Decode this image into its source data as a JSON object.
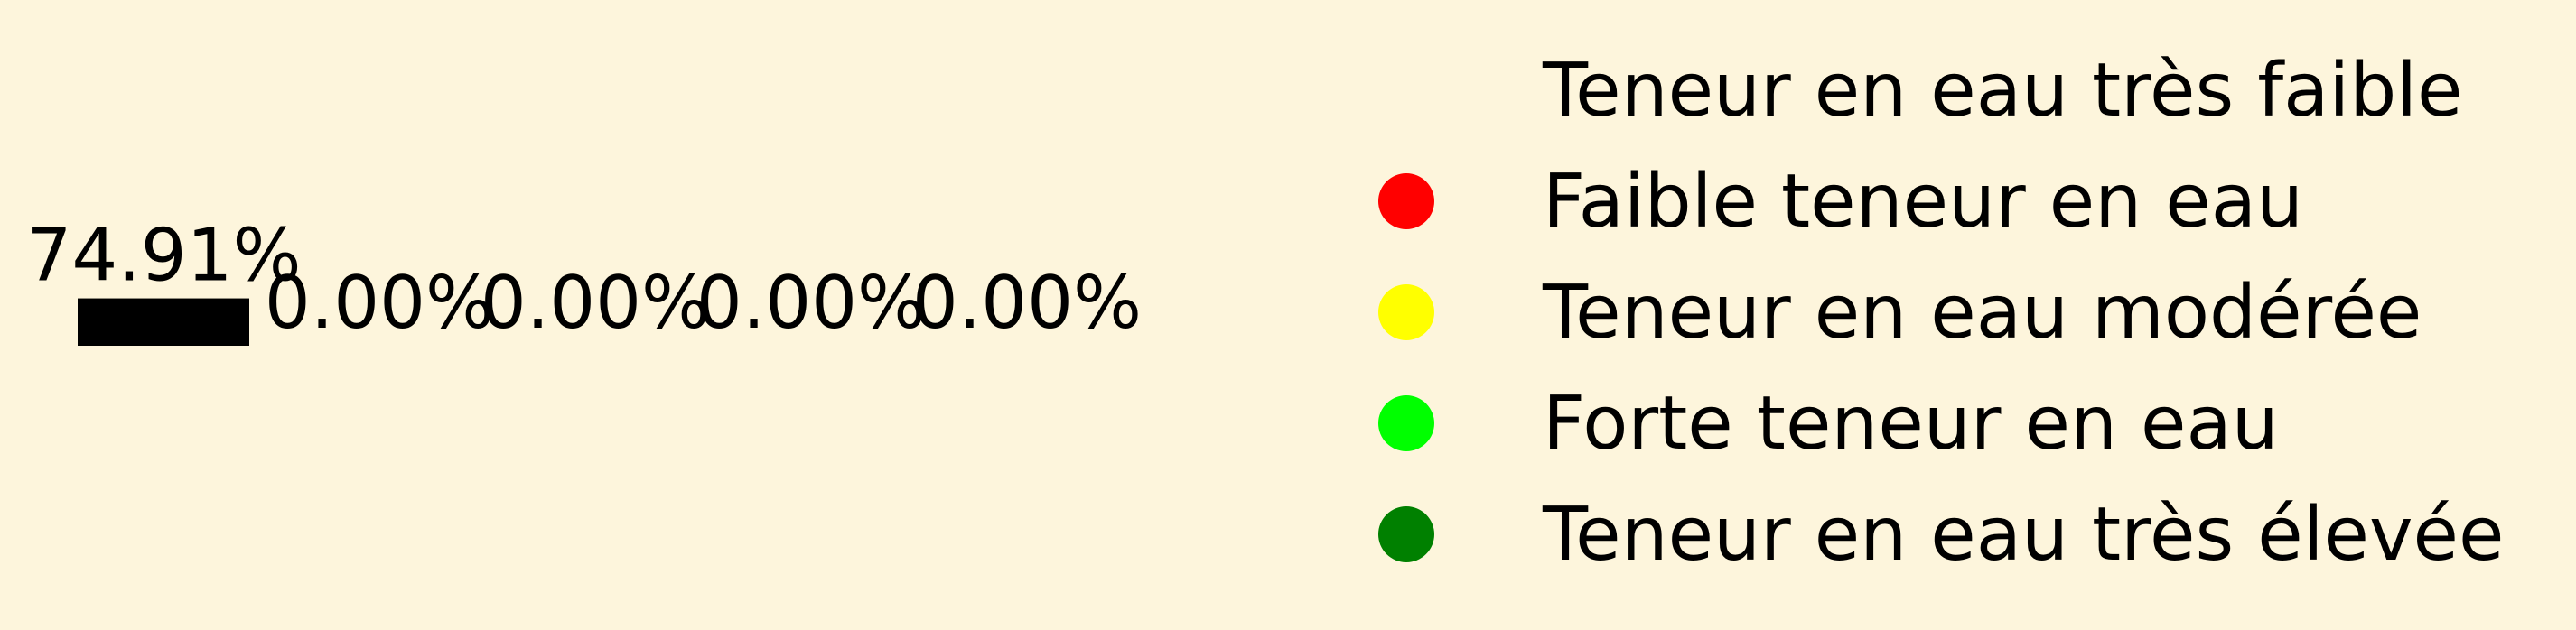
{
  "chart_data": {
    "type": "bar",
    "categories": [
      "Teneur en eau très faible",
      "Faible teneur en eau",
      "Teneur en eau modérée",
      "Forte teneur en eau",
      "Teneur en eau très élevée"
    ],
    "values": [
      74.91,
      0.0,
      0.0,
      0.0,
      0.0
    ],
    "value_labels": [
      "74.91%",
      "0.00%",
      "0.00%",
      "0.00%",
      "0.00%"
    ],
    "colors": [
      "#000000",
      "#ff0000",
      "#ffff00",
      "#00ff00",
      "#008000"
    ],
    "ylim": [
      0,
      100
    ],
    "legend": {
      "placement": "right",
      "entries": [
        {
          "label": "Teneur en eau très faible",
          "color": "#fdf5dc"
        },
        {
          "label": "Faible teneur en eau",
          "color": "#ff0000"
        },
        {
          "label": "Teneur en eau modérée",
          "color": "#ffff00"
        },
        {
          "label": "Forte teneur en eau",
          "color": "#00ff00"
        },
        {
          "label": "Teneur en eau très élevée",
          "color": "#008000"
        }
      ]
    },
    "grid": false,
    "background": "#fdf5dc"
  }
}
